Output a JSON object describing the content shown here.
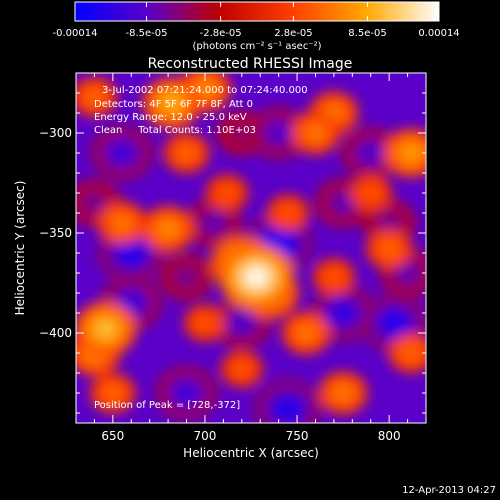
{
  "colorbar": {
    "tick_labels": [
      "-0.00014",
      "-8.5e-05",
      "-2.8e-05",
      "2.8e-05",
      "8.5e-05",
      "0.00014"
    ],
    "tick_values": [
      -0.00014,
      -8.5e-05,
      -2.8e-05,
      2.8e-05,
      8.5e-05,
      0.00014
    ],
    "range": [
      -0.00014,
      0.00014
    ],
    "unit_label": "(photons cm⁻² s⁻¹ asec⁻²)",
    "colors": [
      "#0000ff",
      "#5a00c8",
      "#c00000",
      "#ff4000",
      "#ffa800",
      "#ffffff"
    ]
  },
  "plot": {
    "title": "Reconstructed RHESSI Image",
    "annotations": [
      "3-Jul-2002 07:21:24.000 to 07:24:40.000",
      "Detectors: 4F 5F 6F 7F 8F, Att 0",
      "Energy Range: 12.0 - 25.0 keV",
      "Clean     Total Counts: 1.10E+03"
    ],
    "peak_text": "Position of Peak = [728,-372]"
  },
  "footer": {
    "timestamp": "12-Apr-2013 04:27"
  },
  "chart_data": {
    "type": "heatmap",
    "title": "Reconstructed RHESSI Image",
    "xlabel": "Heliocentric X (arcsec)",
    "ylabel": "Heliocentric Y (arcsec)",
    "xlim": [
      630,
      820
    ],
    "ylim": [
      -445,
      -270
    ],
    "x_ticks": [
      650,
      700,
      750,
      800
    ],
    "y_ticks": [
      -300,
      -350,
      -400
    ],
    "x_tick_labels": [
      "650",
      "700",
      "750",
      "800"
    ],
    "y_tick_labels": [
      "−300",
      "−350",
      "−400"
    ],
    "value_range": [
      -0.00014,
      0.00014
    ],
    "peak": {
      "x": 728,
      "y": -372
    },
    "sources": [
      {
        "x": 728,
        "y": -372,
        "value": 0.00014
      },
      {
        "x": 720,
        "y": -365,
        "value": 0.0001
      },
      {
        "x": 735,
        "y": -380,
        "value": 9e-05
      },
      {
        "x": 646,
        "y": -398,
        "value": 0.0001
      },
      {
        "x": 640,
        "y": -410,
        "value": 7e-05
      },
      {
        "x": 682,
        "y": -285,
        "value": 9e-05
      },
      {
        "x": 700,
        "y": -278,
        "value": 7e-05
      },
      {
        "x": 640,
        "y": -282,
        "value": 5e-05
      },
      {
        "x": 770,
        "y": -290,
        "value": 6e-05
      },
      {
        "x": 760,
        "y": -300,
        "value": 6e-05
      },
      {
        "x": 812,
        "y": -310,
        "value": 8e-05
      },
      {
        "x": 790,
        "y": -330,
        "value": 4e-05
      },
      {
        "x": 690,
        "y": -310,
        "value": 5e-05
      },
      {
        "x": 655,
        "y": -345,
        "value": 6e-05
      },
      {
        "x": 680,
        "y": -348,
        "value": 7e-05
      },
      {
        "x": 712,
        "y": -330,
        "value": 4e-05
      },
      {
        "x": 800,
        "y": -358,
        "value": 5e-05
      },
      {
        "x": 700,
        "y": -395,
        "value": 4e-05
      },
      {
        "x": 755,
        "y": -400,
        "value": 6e-05
      },
      {
        "x": 775,
        "y": -430,
        "value": 6e-05
      },
      {
        "x": 770,
        "y": -372,
        "value": 4e-05
      },
      {
        "x": 650,
        "y": -430,
        "value": 5e-05
      },
      {
        "x": 720,
        "y": -418,
        "value": 4e-05
      },
      {
        "x": 812,
        "y": -410,
        "value": 5e-05
      },
      {
        "x": 745,
        "y": -340,
        "value": 4e-05
      },
      {
        "x": 660,
        "y": -360,
        "value": -0.00012
      },
      {
        "x": 740,
        "y": -355,
        "value": -0.00013
      },
      {
        "x": 660,
        "y": -385,
        "value": -0.0001
      },
      {
        "x": 745,
        "y": -438,
        "value": -0.00012
      },
      {
        "x": 803,
        "y": -395,
        "value": -0.00012
      },
      {
        "x": 775,
        "y": -390,
        "value": -0.00011
      },
      {
        "x": 690,
        "y": -430,
        "value": -0.0001
      },
      {
        "x": 720,
        "y": -395,
        "value": -9e-05
      },
      {
        "x": 740,
        "y": -300,
        "value": -9e-05
      },
      {
        "x": 655,
        "y": -310,
        "value": -0.0001
      },
      {
        "x": 705,
        "y": -345,
        "value": -8e-05
      },
      {
        "x": 790,
        "y": -310,
        "value": -9e-05
      },
      {
        "x": 810,
        "y": -370,
        "value": -8e-05
      },
      {
        "x": 800,
        "y": -345,
        "value": -7e-05
      },
      {
        "x": 690,
        "y": -372,
        "value": -7e-05
      },
      {
        "x": 720,
        "y": -300,
        "value": -6e-05
      },
      {
        "x": 640,
        "y": -335,
        "value": -7e-05
      },
      {
        "x": 775,
        "y": -335,
        "value": -8e-05
      }
    ]
  }
}
